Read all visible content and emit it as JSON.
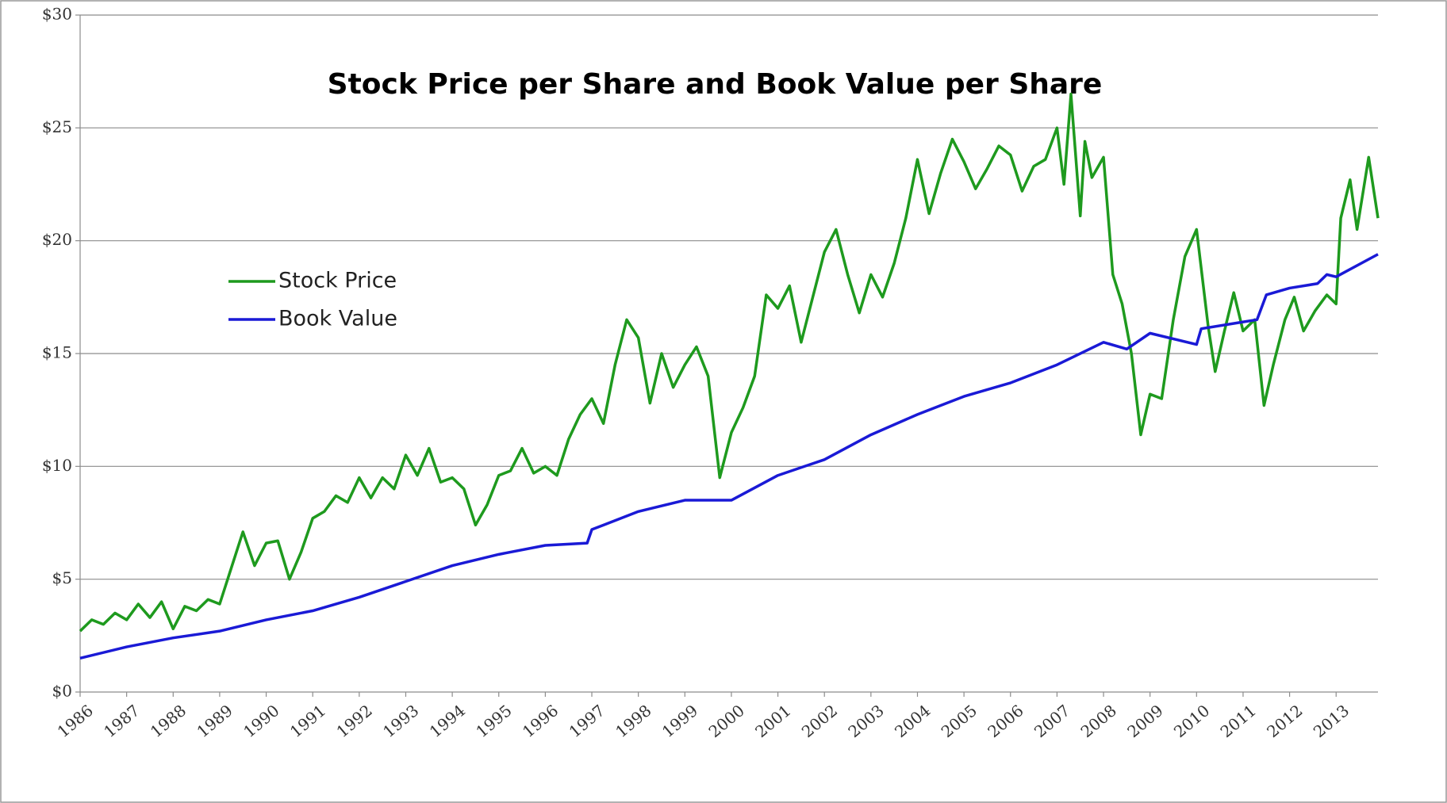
{
  "chart_data": {
    "type": "line",
    "title": "Stock Price per Share and Book Value per Share",
    "xlim": [
      1986,
      2013.9
    ],
    "xticks": [
      1986,
      1987,
      1988,
      1989,
      1990,
      1991,
      1992,
      1993,
      1994,
      1995,
      1996,
      1997,
      1998,
      1999,
      2000,
      2001,
      2002,
      2003,
      2004,
      2005,
      2006,
      2007,
      2008,
      2009,
      2010,
      2011,
      2012,
      2013
    ],
    "ylim": [
      0,
      30
    ],
    "yticks": [
      {
        "value": 0,
        "label": "$0"
      },
      {
        "value": 5,
        "label": "$5"
      },
      {
        "value": 10,
        "label": "$10"
      },
      {
        "value": 15,
        "label": "$15"
      },
      {
        "value": 20,
        "label": "$20"
      },
      {
        "value": 25,
        "label": "$25"
      },
      {
        "value": 30,
        "label": "$30"
      }
    ],
    "grid": true,
    "legend": "left",
    "series": [
      {
        "name": "Stock Price",
        "color": "#1e9a1e",
        "x": [
          1986.0,
          1986.25,
          1986.5,
          1986.75,
          1987.0,
          1987.25,
          1987.5,
          1987.75,
          1988.0,
          1988.25,
          1988.5,
          1988.75,
          1989.0,
          1989.25,
          1989.5,
          1989.75,
          1990.0,
          1990.25,
          1990.5,
          1990.75,
          1991.0,
          1991.25,
          1991.5,
          1991.75,
          1992.0,
          1992.25,
          1992.5,
          1992.75,
          1993.0,
          1993.25,
          1993.5,
          1993.75,
          1994.0,
          1994.25,
          1994.5,
          1994.75,
          1995.0,
          1995.25,
          1995.5,
          1995.75,
          1996.0,
          1996.25,
          1996.5,
          1996.75,
          1997.0,
          1997.25,
          1997.5,
          1997.75,
          1998.0,
          1998.25,
          1998.5,
          1998.75,
          1999.0,
          1999.25,
          1999.5,
          1999.75,
          2000.0,
          2000.25,
          2000.5,
          2000.75,
          2001.0,
          2001.25,
          2001.5,
          2001.75,
          2002.0,
          2002.25,
          2002.5,
          2002.75,
          2003.0,
          2003.25,
          2003.5,
          2003.75,
          2004.0,
          2004.25,
          2004.5,
          2004.75,
          2005.0,
          2005.25,
          2005.5,
          2005.75,
          2006.0,
          2006.25,
          2006.5,
          2006.75,
          2007.0,
          2007.15,
          2007.3,
          2007.5,
          2007.6,
          2007.75,
          2008.0,
          2008.2,
          2008.4,
          2008.6,
          2008.8,
          2009.0,
          2009.25,
          2009.5,
          2009.75,
          2010.0,
          2010.25,
          2010.4,
          2010.6,
          2010.8,
          2011.0,
          2011.25,
          2011.45,
          2011.65,
          2011.9,
          2012.1,
          2012.3,
          2012.55,
          2012.8,
          2013.0,
          2013.1,
          2013.3,
          2013.45,
          2013.7,
          2013.9
        ],
        "values": [
          2.7,
          3.2,
          3.0,
          3.5,
          3.2,
          3.9,
          3.3,
          4.0,
          2.8,
          3.8,
          3.6,
          4.1,
          3.9,
          5.5,
          7.1,
          5.6,
          6.6,
          6.7,
          5.0,
          6.2,
          7.7,
          8.0,
          8.7,
          8.4,
          9.5,
          8.6,
          9.5,
          9.0,
          10.5,
          9.6,
          10.8,
          9.3,
          9.5,
          9.0,
          7.4,
          8.3,
          9.6,
          9.8,
          10.8,
          9.7,
          10.0,
          9.6,
          11.2,
          12.3,
          13.0,
          11.9,
          14.5,
          16.5,
          15.7,
          12.8,
          15.0,
          13.5,
          14.5,
          15.3,
          14.0,
          9.5,
          11.5,
          12.6,
          14.0,
          17.6,
          17.0,
          18.0,
          15.5,
          17.5,
          19.5,
          20.5,
          18.5,
          16.8,
          18.5,
          17.5,
          19.0,
          21.0,
          23.6,
          21.2,
          23.0,
          24.5,
          23.5,
          22.3,
          23.2,
          24.2,
          23.8,
          22.2,
          23.3,
          23.6,
          25.0,
          22.5,
          26.5,
          21.1,
          24.4,
          22.8,
          23.7,
          18.5,
          17.2,
          15.0,
          11.4,
          13.2,
          13.0,
          16.5,
          19.3,
          20.5,
          16.2,
          14.2,
          16.0,
          17.7,
          16.0,
          16.5,
          12.7,
          14.5,
          16.5,
          17.5,
          16.0,
          16.9,
          17.6,
          17.2,
          21.0,
          22.7,
          20.5,
          23.7,
          21.0
        ]
      },
      {
        "name": "Book Value",
        "color": "#1a1ad6",
        "x": [
          1986,
          1987,
          1988,
          1989,
          1990,
          1991,
          1992,
          1993,
          1994,
          1995,
          1996,
          1996.9,
          1997,
          1998,
          1999,
          2000,
          2001,
          2002,
          2003,
          2004,
          2005,
          2006,
          2007,
          2008,
          2008.5,
          2009,
          2010,
          2010.1,
          2011,
          2011.3,
          2011.5,
          2012,
          2012.6,
          2012.8,
          2013,
          2013.9
        ],
        "values": [
          1.5,
          2.0,
          2.4,
          2.7,
          3.2,
          3.6,
          4.2,
          4.9,
          5.6,
          6.1,
          6.5,
          6.6,
          7.2,
          8.0,
          8.5,
          8.5,
          9.6,
          10.3,
          11.4,
          12.3,
          13.1,
          13.7,
          14.5,
          15.5,
          15.2,
          15.9,
          15.4,
          16.1,
          16.4,
          16.5,
          17.6,
          17.9,
          18.1,
          18.5,
          18.4,
          19.4
        ]
      }
    ]
  }
}
